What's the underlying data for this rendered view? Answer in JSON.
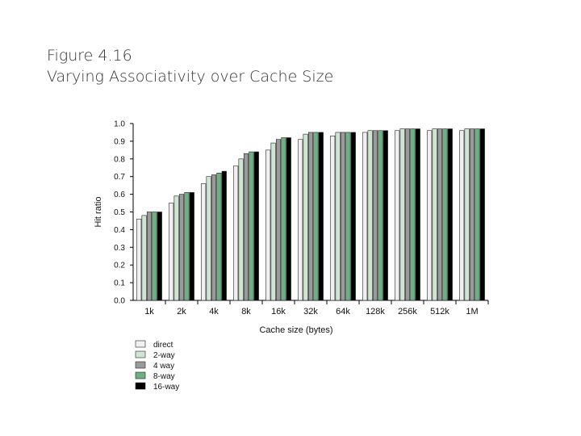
{
  "slide": {
    "title_line1": "Figure 4.16",
    "title_line2": "Varying Associativity over Cache Size"
  },
  "chart_data": {
    "type": "bar",
    "title": "",
    "xlabel": "Cache size (bytes)",
    "ylabel": "Hit ratio",
    "ylim": [
      0,
      1.0
    ],
    "yticks": [
      "0.0",
      "0.1",
      "0.2",
      "0.3",
      "0.4",
      "0.5",
      "0.6",
      "0.7",
      "0.8",
      "0.9",
      "1.0"
    ],
    "categories": [
      "1k",
      "2k",
      "4k",
      "8k",
      "16k",
      "32k",
      "64k",
      "128k",
      "256k",
      "512k",
      "1M"
    ],
    "series": [
      {
        "name": "direct",
        "color": "#f0f0f0",
        "values": [
          0.46,
          0.55,
          0.66,
          0.76,
          0.85,
          0.91,
          0.93,
          0.95,
          0.96,
          0.96,
          0.96
        ]
      },
      {
        "name": "2-way",
        "color": "#cfe6d4",
        "values": [
          0.48,
          0.59,
          0.7,
          0.8,
          0.89,
          0.94,
          0.95,
          0.96,
          0.97,
          0.97,
          0.97
        ]
      },
      {
        "name": "4 way",
        "color": "#9a9a9a",
        "values": [
          0.5,
          0.6,
          0.71,
          0.83,
          0.91,
          0.95,
          0.95,
          0.96,
          0.97,
          0.97,
          0.97
        ]
      },
      {
        "name": "8-way",
        "color": "#6fb083",
        "values": [
          0.5,
          0.61,
          0.72,
          0.84,
          0.92,
          0.95,
          0.95,
          0.96,
          0.97,
          0.97,
          0.97
        ]
      },
      {
        "name": "16-way",
        "color": "#000000",
        "values": [
          0.5,
          0.61,
          0.73,
          0.84,
          0.92,
          0.95,
          0.95,
          0.96,
          0.97,
          0.97,
          0.97
        ]
      }
    ],
    "grid": false,
    "legend": "bottom-left"
  }
}
